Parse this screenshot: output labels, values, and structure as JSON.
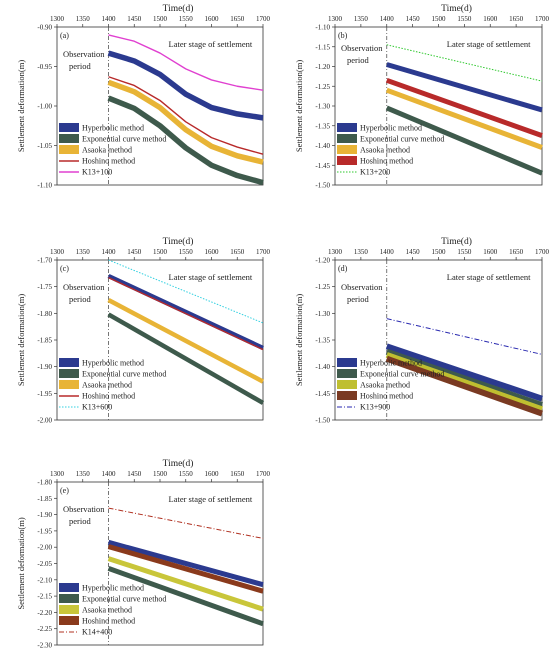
{
  "figure": {
    "xlabel": "Time(d)",
    "ylabel": "Settlement deformation(m)",
    "observation_label_line1": "Observation",
    "observation_label_line2": "period",
    "later_stage_label": "Later stage of settlement"
  },
  "colors": {
    "hyperbolic": "#2b3a8f",
    "exponential": "#3e5a4c",
    "asaoka": "#e8b436",
    "hoshino": "#b82a2a",
    "asaoka_d": "#bfbf30",
    "hoshino_d": "#7a3a22",
    "asaoka_e": "#c9c63a",
    "hoshino_e": "#8a3a1c"
  },
  "chart_data": [
    {
      "type": "line",
      "panel_label": "(a)",
      "xlabel": "Time(d)",
      "ylabel": "Settlement deformation(m)",
      "xlim": [
        1300,
        1700
      ],
      "ylim": [
        -1.1,
        -0.9
      ],
      "x_ticks": [
        1300,
        1350,
        1400,
        1450,
        1500,
        1550,
        1600,
        1650,
        1700
      ],
      "y_ticks": [
        "-0.90",
        "-0.95",
        "-1.00",
        "-1.05",
        "-1.10"
      ],
      "observation_end_x": 1400,
      "legend": [
        "Hyperbolic method",
        "Exponential curve method",
        "Asaoka method",
        "Hoshino method",
        "K13+100"
      ],
      "series": [
        {
          "name": "Hyperbolic method",
          "style": "band",
          "color": "hyperbolic",
          "x": [
            1400,
            1450,
            1500,
            1550,
            1600,
            1650,
            1700
          ],
          "y": [
            -0.933,
            -0.943,
            -0.96,
            -0.985,
            -1.002,
            -1.01,
            -1.015
          ]
        },
        {
          "name": "Exponential curve method",
          "style": "band",
          "color": "exponential",
          "x": [
            1400,
            1450,
            1500,
            1550,
            1600,
            1650,
            1700
          ],
          "y": [
            -0.99,
            -1.003,
            -1.025,
            -1.053,
            -1.075,
            -1.088,
            -1.097
          ]
        },
        {
          "name": "Asaoka method",
          "style": "band",
          "color": "asaoka",
          "x": [
            1400,
            1450,
            1500,
            1550,
            1600,
            1650,
            1700
          ],
          "y": [
            -0.97,
            -0.982,
            -1.002,
            -1.03,
            -1.051,
            -1.063,
            -1.071
          ]
        },
        {
          "name": "Hoshino method",
          "style": "line",
          "color": "hoshino",
          "x": [
            1400,
            1450,
            1500,
            1550,
            1600,
            1650,
            1700
          ],
          "y": [
            -0.963,
            -0.974,
            -0.993,
            -1.02,
            -1.04,
            -1.052,
            -1.061
          ]
        },
        {
          "name": "K13+100",
          "style": "line",
          "color": "#e040d0",
          "x": [
            1400,
            1450,
            1500,
            1550,
            1600,
            1650,
            1700
          ],
          "y": [
            -0.91,
            -0.918,
            -0.933,
            -0.953,
            -0.967,
            -0.975,
            -0.98
          ]
        }
      ]
    },
    {
      "type": "line",
      "panel_label": "(b)",
      "xlabel": "Time(d)",
      "ylabel": "Settlement deformation(m)",
      "xlim": [
        1300,
        1700
      ],
      "ylim": [
        -1.5,
        -1.1
      ],
      "x_ticks": [
        1300,
        1350,
        1400,
        1450,
        1500,
        1550,
        1600,
        1650,
        1700
      ],
      "y_ticks": [
        "-1.10",
        "-1.15",
        "-1.20",
        "-1.25",
        "-1.30",
        "-1.35",
        "-1.40",
        "-1.45",
        "-1.50"
      ],
      "observation_end_x": 1400,
      "legend": [
        "Hyperbolic method",
        "Exponential curve method",
        "Asaoka method",
        "Hoshino method",
        "K13+200"
      ],
      "series": [
        {
          "name": "Hyperbolic method",
          "style": "band",
          "color": "hyperbolic",
          "x": [
            1400,
            1700
          ],
          "y": [
            -1.195,
            -1.31
          ]
        },
        {
          "name": "Exponential curve method",
          "style": "band",
          "color": "exponential",
          "x": [
            1400,
            1700
          ],
          "y": [
            -1.305,
            -1.47
          ]
        },
        {
          "name": "Asaoka method",
          "style": "band",
          "color": "asaoka",
          "x": [
            1400,
            1700
          ],
          "y": [
            -1.26,
            -1.405
          ]
        },
        {
          "name": "Hoshino method",
          "style": "band",
          "color": "hoshino",
          "x": [
            1400,
            1700
          ],
          "y": [
            -1.235,
            -1.375
          ]
        },
        {
          "name": "K13+200",
          "style": "dotted",
          "color": "#2ec82e",
          "x": [
            1400,
            1700
          ],
          "y": [
            -1.145,
            -1.237
          ]
        }
      ]
    },
    {
      "type": "line",
      "panel_label": "(c)",
      "xlabel": "Time(d)",
      "ylabel": "Settlement deformation(m)",
      "xlim": [
        1300,
        1700
      ],
      "ylim": [
        -2.0,
        -1.7
      ],
      "x_ticks": [
        1300,
        1350,
        1400,
        1450,
        1500,
        1550,
        1600,
        1650,
        1700
      ],
      "y_ticks": [
        "-1.70",
        "-1.75",
        "-1.80",
        "-1.85",
        "-1.90",
        "-1.95",
        "-2.00"
      ],
      "observation_end_x": 1400,
      "legend": [
        "Hyperbolic method",
        "Exponential curve method",
        "Asaoka method",
        "Hoshino method",
        "K13+600"
      ],
      "series": [
        {
          "name": "Hyperbolic method",
          "style": "band",
          "color": "hyperbolic",
          "x": [
            1400,
            1700
          ],
          "y": [
            -1.73,
            -1.865
          ]
        },
        {
          "name": "Exponential curve method",
          "style": "band",
          "color": "exponential",
          "x": [
            1400,
            1700
          ],
          "y": [
            -1.802,
            -1.968
          ]
        },
        {
          "name": "Asaoka method",
          "style": "band",
          "color": "asaoka",
          "x": [
            1400,
            1700
          ],
          "y": [
            -1.775,
            -1.928
          ]
        },
        {
          "name": "Hoshino method",
          "style": "line",
          "color": "hoshino",
          "x": [
            1400,
            1700
          ],
          "y": [
            -1.733,
            -1.868
          ]
        },
        {
          "name": "K13+600",
          "style": "dotted",
          "color": "#30d0e0",
          "x": [
            1400,
            1700
          ],
          "y": [
            -1.7,
            -1.818
          ]
        }
      ]
    },
    {
      "type": "line",
      "panel_label": "(d)",
      "xlabel": "Time(d)",
      "ylabel": "Settlement deformation(m)",
      "xlim": [
        1300,
        1700
      ],
      "ylim": [
        -1.5,
        -1.2
      ],
      "x_ticks": [
        1300,
        1350,
        1400,
        1450,
        1500,
        1550,
        1600,
        1650,
        1700
      ],
      "y_ticks": [
        "-1.20",
        "-1.25",
        "-1.30",
        "-1.35",
        "-1.40",
        "-1.45",
        "-1.50"
      ],
      "observation_end_x": 1400,
      "legend": [
        "Hyperbolic method",
        "Exponential curve method",
        "Asaoka method",
        "Hoshino method",
        "K13+900"
      ],
      "series": [
        {
          "name": "Hyperbolic method",
          "style": "band",
          "color": "hyperbolic",
          "x": [
            1400,
            1700
          ],
          "y": [
            -1.362,
            -1.46
          ]
        },
        {
          "name": "Exponential curve method",
          "style": "band",
          "color": "exponential",
          "x": [
            1400,
            1700
          ],
          "y": [
            -1.372,
            -1.472
          ]
        },
        {
          "name": "Asaoka method",
          "style": "band",
          "color": "asaoka_d",
          "x": [
            1400,
            1700
          ],
          "y": [
            -1.378,
            -1.48
          ]
        },
        {
          "name": "Hoshino method",
          "style": "band",
          "color": "hoshino_d",
          "x": [
            1400,
            1700
          ],
          "y": [
            -1.385,
            -1.488
          ]
        },
        {
          "name": "K13+900",
          "style": "dashdot",
          "color": "#2a2ab0",
          "x": [
            1400,
            1700
          ],
          "y": [
            -1.31,
            -1.377
          ]
        }
      ]
    },
    {
      "type": "line",
      "panel_label": "(e)",
      "xlabel": "Time(d)",
      "ylabel": "Settlement deformation(m)",
      "xlim": [
        1300,
        1700
      ],
      "ylim": [
        -2.3,
        -1.8
      ],
      "x_ticks": [
        1300,
        1350,
        1400,
        1450,
        1500,
        1550,
        1600,
        1650,
        1700
      ],
      "y_ticks": [
        "-1.80",
        "-1.85",
        "-1.90",
        "-1.95",
        "-2.00",
        "-2.05",
        "-2.10",
        "-2.15",
        "-2.20",
        "-2.25",
        "-2.30"
      ],
      "observation_end_x": 1400,
      "legend": [
        "Hyperbolic method",
        "Exponential curve method",
        "Asaoka method",
        "Hoshino method",
        "K14+400"
      ],
      "series": [
        {
          "name": "Hyperbolic method",
          "style": "band",
          "color": "hyperbolic",
          "x": [
            1400,
            1700
          ],
          "y": [
            -1.985,
            -2.115
          ]
        },
        {
          "name": "Exponential curve method",
          "style": "band",
          "color": "exponential",
          "x": [
            1400,
            1700
          ],
          "y": [
            -2.065,
            -2.235
          ]
        },
        {
          "name": "Asaoka method",
          "style": "band",
          "color": "asaoka_e",
          "x": [
            1400,
            1700
          ],
          "y": [
            -2.035,
            -2.19
          ]
        },
        {
          "name": "Hoshino method",
          "style": "band",
          "color": "hoshino_e",
          "x": [
            1400,
            1700
          ],
          "y": [
            -1.998,
            -2.135
          ]
        },
        {
          "name": "K14+400",
          "style": "dashdot",
          "color": "#b03020",
          "x": [
            1400,
            1700
          ],
          "y": [
            -1.88,
            -1.973
          ]
        }
      ]
    }
  ]
}
